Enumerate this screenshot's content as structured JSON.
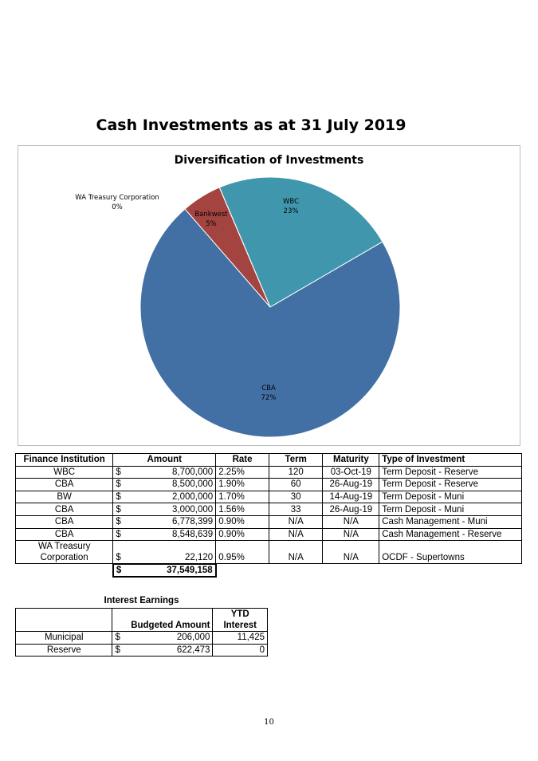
{
  "page": {
    "title": "Cash Investments as at 31 July 2019",
    "page_number": "10"
  },
  "chart_data": {
    "type": "pie",
    "title": "Diversification of Investments",
    "slices": [
      {
        "label": "CBA",
        "pct_label": "72%",
        "value": 72,
        "color": "#4270a5"
      },
      {
        "label": "WA Treasury Corporation",
        "pct_label": "0%",
        "value": 0,
        "color": "#8064a2"
      },
      {
        "label": "Bankwest",
        "pct_label": "5%",
        "value": 5,
        "color": "#a34441"
      },
      {
        "label": "WBC",
        "pct_label": "23%",
        "value": 23,
        "color": "#4097ad"
      }
    ]
  },
  "investments": {
    "headers": [
      "Finance Institution",
      "Amount",
      "Rate",
      "Term",
      "Maturity",
      "Type of Investment"
    ],
    "rows": [
      {
        "institution": "WBC",
        "currency": "$",
        "amount": "8,700,000",
        "rate": "2.25%",
        "term": "120",
        "maturity": "03-Oct-19",
        "type": "Term Deposit - Reserve"
      },
      {
        "institution": "CBA",
        "currency": "$",
        "amount": "8,500,000",
        "rate": "1.90%",
        "term": "60",
        "maturity": "26-Aug-19",
        "type": "Term Deposit - Reserve"
      },
      {
        "institution": "BW",
        "currency": "$",
        "amount": "2,000,000",
        "rate": "1.70%",
        "term": "30",
        "maturity": "14-Aug-19",
        "type": "Term Deposit - Muni"
      },
      {
        "institution": "CBA",
        "currency": "$",
        "amount": "3,000,000",
        "rate": "1.56%",
        "term": "33",
        "maturity": "26-Aug-19",
        "type": "Term Deposit - Muni"
      },
      {
        "institution": "CBA",
        "currency": "$",
        "amount": "6,778,399",
        "rate": "0.90%",
        "term": "N/A",
        "maturity": "N/A",
        "type": "Cash Management - Muni"
      },
      {
        "institution": "CBA",
        "currency": "$",
        "amount": "8,548,639",
        "rate": "0.90%",
        "term": "N/A",
        "maturity": "N/A",
        "type": "Cash Management - Reserve"
      },
      {
        "institution_line1": "WA Treasury",
        "institution_line2": "Corporation",
        "currency": "$",
        "amount": "22,120",
        "rate": "0.95%",
        "term": "N/A",
        "maturity": "N/A",
        "type": "OCDF - Supertowns"
      }
    ],
    "total": {
      "currency": "$",
      "amount": "37,549,158"
    }
  },
  "interest": {
    "caption": "Interest Earnings",
    "headers": {
      "budgeted": "Budgeted Amount",
      "ytd_line1": "YTD",
      "ytd_line2": "Interest"
    },
    "rows": [
      {
        "label": "Municipal",
        "currency": "$",
        "budgeted": "206,000",
        "ytd": "11,425"
      },
      {
        "label": "Reserve",
        "currency": "$",
        "budgeted": "622,473",
        "ytd": "0"
      }
    ]
  }
}
